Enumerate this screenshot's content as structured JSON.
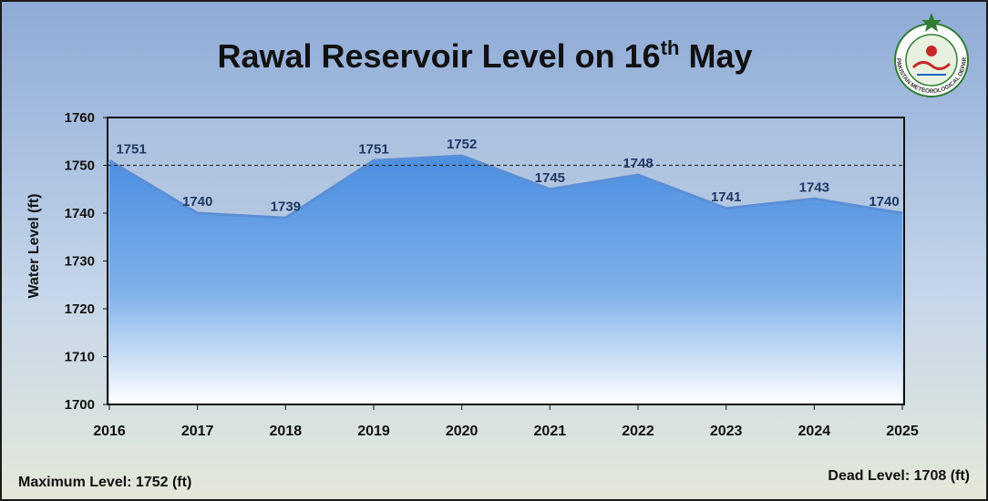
{
  "chart_data": {
    "type": "area",
    "title": "Rawal Reservoir Level on 16",
    "title_sup": "th",
    "title_tail": " May",
    "ylabel": "Water Level (ft)",
    "xlabel": "",
    "x": [
      "2016",
      "2017",
      "2018",
      "2019",
      "2020",
      "2021",
      "2022",
      "2023",
      "2024",
      "2025"
    ],
    "values": [
      1751,
      1740,
      1739,
      1751,
      1752,
      1745,
      1748,
      1741,
      1743,
      1740
    ],
    "ylim": [
      1700,
      1760
    ],
    "yticks": [
      "1700",
      "1710",
      "1720",
      "1730",
      "1740",
      "1750",
      "1760"
    ],
    "reference_line": 1750,
    "grid": false,
    "fill_color_top": "#4a8ee0",
    "fill_color_bottom": "#ffffff",
    "line_color": "#5b8fd6"
  },
  "footer": {
    "max_level": "Maximum Level: 1752 (ft)",
    "dead_level": "Dead Level: 1708 (ft)"
  },
  "logo": {
    "icon": "pakistan-meteorological-department-emblem",
    "text": "PAKISTAN METEOROLOGICAL DEPARTMENT"
  }
}
